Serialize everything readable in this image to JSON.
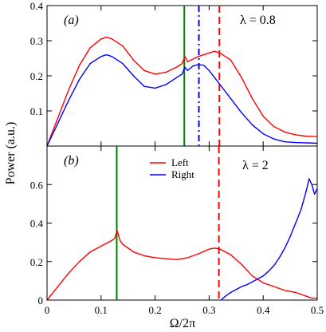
{
  "chart_data": [
    {
      "type": "line",
      "panel_label": "(a)",
      "annotation": "λ = 0.8",
      "xlabel": "Ω/2π",
      "ylabel": "Power (a.u.)",
      "xlim": [
        0,
        0.5
      ],
      "ylim": [
        0,
        0.4
      ],
      "yticks": [
        "0.1",
        "0.2",
        "0.3",
        "0.4"
      ],
      "series": [
        {
          "name": "Left",
          "color": "#ff0000",
          "x": [
            0.0,
            0.02,
            0.04,
            0.06,
            0.08,
            0.1,
            0.11,
            0.12,
            0.14,
            0.16,
            0.18,
            0.2,
            0.22,
            0.24,
            0.25,
            0.255,
            0.26,
            0.28,
            0.3,
            0.31,
            0.32,
            0.34,
            0.36,
            0.38,
            0.4,
            0.42,
            0.44,
            0.46,
            0.48,
            0.5
          ],
          "y": [
            0.0,
            0.08,
            0.16,
            0.23,
            0.28,
            0.305,
            0.31,
            0.305,
            0.285,
            0.245,
            0.215,
            0.205,
            0.21,
            0.225,
            0.235,
            0.255,
            0.24,
            0.255,
            0.265,
            0.27,
            0.265,
            0.245,
            0.195,
            0.135,
            0.085,
            0.055,
            0.04,
            0.032,
            0.028,
            0.027
          ]
        },
        {
          "name": "Right",
          "color": "#0000ff",
          "x": [
            0.0,
            0.02,
            0.04,
            0.06,
            0.08,
            0.1,
            0.11,
            0.12,
            0.14,
            0.16,
            0.18,
            0.2,
            0.22,
            0.24,
            0.25,
            0.255,
            0.26,
            0.27,
            0.28,
            0.29,
            0.3,
            0.31,
            0.32,
            0.34,
            0.36,
            0.38,
            0.4,
            0.42,
            0.44,
            0.46,
            0.48,
            0.5
          ],
          "y": [
            0.0,
            0.065,
            0.13,
            0.19,
            0.235,
            0.255,
            0.26,
            0.255,
            0.235,
            0.2,
            0.17,
            0.165,
            0.175,
            0.195,
            0.205,
            0.225,
            0.215,
            0.228,
            0.232,
            0.23,
            0.215,
            0.195,
            0.175,
            0.135,
            0.095,
            0.06,
            0.035,
            0.02,
            0.012,
            0.01,
            0.009,
            0.008
          ]
        }
      ],
      "vlines": [
        {
          "x": 0.254,
          "color": "#008000",
          "style": "solid"
        },
        {
          "x": 0.281,
          "color": "#0000ff",
          "style": "dash-dot"
        },
        {
          "x": 0.319,
          "color": "#ff0000",
          "style": "dashed"
        }
      ]
    },
    {
      "type": "line",
      "panel_label": "(b)",
      "annotation": "λ = 2",
      "xlabel": "Ω/2π",
      "ylabel": "Power (a.u.)",
      "xlim": [
        0,
        0.5
      ],
      "ylim": [
        0,
        0.8
      ],
      "xticks": [
        "0",
        "0.1",
        "0.2",
        "0.3",
        "0.4",
        "0.5"
      ],
      "yticks": [
        "0",
        "0.2",
        "0.4",
        "0.6"
      ],
      "legend": {
        "position": "top-center",
        "entries": [
          "Left",
          "Right"
        ]
      },
      "series": [
        {
          "name": "Left",
          "color": "#ff0000",
          "x": [
            0.0,
            0.02,
            0.04,
            0.06,
            0.08,
            0.1,
            0.12,
            0.125,
            0.13,
            0.135,
            0.14,
            0.16,
            0.18,
            0.2,
            0.22,
            0.24,
            0.26,
            0.28,
            0.3,
            0.31,
            0.32,
            0.34,
            0.36,
            0.38,
            0.4,
            0.42,
            0.44,
            0.46,
            0.48,
            0.49,
            0.5
          ],
          "y": [
            0.0,
            0.07,
            0.14,
            0.2,
            0.25,
            0.28,
            0.31,
            0.32,
            0.36,
            0.31,
            0.29,
            0.25,
            0.23,
            0.22,
            0.215,
            0.21,
            0.22,
            0.24,
            0.265,
            0.27,
            0.265,
            0.235,
            0.185,
            0.125,
            0.09,
            0.07,
            0.05,
            0.04,
            0.02,
            0.01,
            0.01
          ]
        },
        {
          "name": "Right",
          "color": "#0000ff",
          "x": [
            0.322,
            0.33,
            0.34,
            0.35,
            0.36,
            0.37,
            0.38,
            0.39,
            0.4,
            0.41,
            0.42,
            0.43,
            0.44,
            0.45,
            0.46,
            0.47,
            0.48,
            0.485,
            0.49,
            0.495,
            0.5
          ],
          "y": [
            0.0,
            0.02,
            0.04,
            0.055,
            0.07,
            0.08,
            0.095,
            0.11,
            0.125,
            0.15,
            0.18,
            0.22,
            0.27,
            0.33,
            0.4,
            0.47,
            0.57,
            0.63,
            0.6,
            0.55,
            0.58
          ]
        }
      ],
      "vlines": [
        {
          "x": 0.129,
          "color": "#008000",
          "style": "solid"
        },
        {
          "x": 0.318,
          "color": "#ff0000",
          "style": "dashed"
        }
      ]
    }
  ]
}
